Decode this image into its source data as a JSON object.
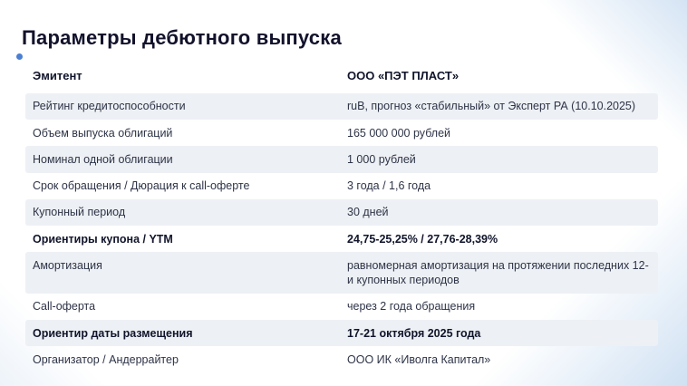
{
  "page": {
    "title": "Параметры дебютного выпуска"
  },
  "colors": {
    "accent_blue": "#4a7fd4",
    "row_shade": "#edf0f4",
    "title_text": "#12122c",
    "body_text": "#2e3447",
    "corner_gradient_blue": "#d2e2f3"
  },
  "table": {
    "rows": [
      {
        "label": "Эмитент",
        "value": "ООО «ПЭТ ПЛАСТ»"
      },
      {
        "label": "Рейтинг кредитоспособности",
        "value": "ruB, прогноз «стабильный» от Эксперт РА (10.10.2025)"
      },
      {
        "label": "Объем выпуска облигаций",
        "value": "165 000 000 рублей"
      },
      {
        "label": "Номинал одной облигации",
        "value": "1 000 рублей"
      },
      {
        "label": "Срок обращения / Дюрация к call-оферте",
        "value": "3 года / 1,6 года"
      },
      {
        "label": "Купонный период",
        "value": "30 дней"
      },
      {
        "label": "Ориентиры купона / YTM",
        "value": "24,75-25,25% / 27,76-28,39%"
      },
      {
        "label": "Амортизация",
        "value": "равномерная амортизация на протяжении последних 12-и купонных периодов"
      },
      {
        "label": "Call-оферта",
        "value": "через 2 года обращения"
      },
      {
        "label": "Ориентир даты размещения",
        "value": "17-21 октября 2025 года"
      },
      {
        "label": "Организатор / Андеррайтер",
        "value": "ООО ИК «Иволга Капитал»"
      }
    ]
  }
}
